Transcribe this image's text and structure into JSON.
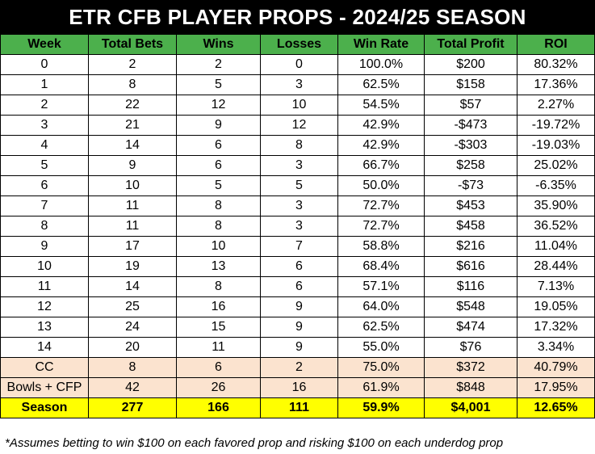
{
  "title": "ETR CFB PLAYER PROPS - 2024/25 SEASON",
  "headers": [
    "Week",
    "Total Bets",
    "Wins",
    "Losses",
    "Win Rate",
    "Total Profit",
    "ROI"
  ],
  "rows": [
    [
      "0",
      "2",
      "2",
      "0",
      "100.0%",
      "$200",
      "80.32%"
    ],
    [
      "1",
      "8",
      "5",
      "3",
      "62.5%",
      "$158",
      "17.36%"
    ],
    [
      "2",
      "22",
      "12",
      "10",
      "54.5%",
      "$57",
      "2.27%"
    ],
    [
      "3",
      "21",
      "9",
      "12",
      "42.9%",
      "-$473",
      "-19.72%"
    ],
    [
      "4",
      "14",
      "6",
      "8",
      "42.9%",
      "-$303",
      "-19.03%"
    ],
    [
      "5",
      "9",
      "6",
      "3",
      "66.7%",
      "$258",
      "25.02%"
    ],
    [
      "6",
      "10",
      "5",
      "5",
      "50.0%",
      "-$73",
      "-6.35%"
    ],
    [
      "7",
      "11",
      "8",
      "3",
      "72.7%",
      "$453",
      "35.90%"
    ],
    [
      "8",
      "11",
      "8",
      "3",
      "72.7%",
      "$458",
      "36.52%"
    ],
    [
      "9",
      "17",
      "10",
      "7",
      "58.8%",
      "$216",
      "11.04%"
    ],
    [
      "10",
      "19",
      "13",
      "6",
      "68.4%",
      "$616",
      "28.44%"
    ],
    [
      "11",
      "14",
      "8",
      "6",
      "57.1%",
      "$116",
      "7.13%"
    ],
    [
      "12",
      "25",
      "16",
      "9",
      "64.0%",
      "$548",
      "19.05%"
    ],
    [
      "13",
      "24",
      "15",
      "9",
      "62.5%",
      "$474",
      "17.32%"
    ],
    [
      "14",
      "20",
      "11",
      "9",
      "55.0%",
      "$76",
      "3.34%"
    ]
  ],
  "postseason_rows": [
    [
      "CC",
      "8",
      "6",
      "2",
      "75.0%",
      "$372",
      "40.79%"
    ],
    [
      "Bowls + CFP",
      "42",
      "26",
      "16",
      "61.9%",
      "$848",
      "17.95%"
    ]
  ],
  "total_row": [
    "Season",
    "277",
    "166",
    "111",
    "59.9%",
    "$4,001",
    "12.65%"
  ],
  "footnote": "*Assumes betting to win $100 on each favored prop and risking $100 on each underdog prop",
  "colors": {
    "title_bg": "#000000",
    "header_bg": "#4cb04c",
    "postseason_bg": "#fbe3cf",
    "total_bg": "#ffff00"
  }
}
